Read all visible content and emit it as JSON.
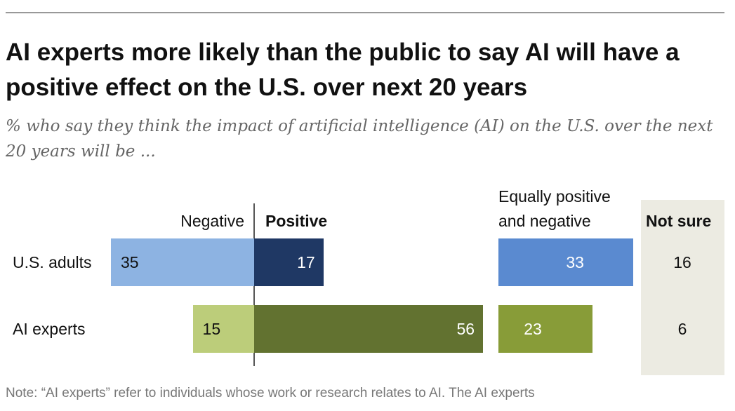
{
  "chart_data": {
    "type": "bar",
    "title": "AI experts more likely than the public to say AI will have a positive effect on the U.S. over next 20 years",
    "subtitle": "% who say they think the impact of artificial intelligence (AI) on the U.S. over the next 20 years will be ...",
    "headers": {
      "negative": "Negative",
      "positive": "Positive",
      "equally_1": "Equally positive",
      "equally_2": "and negative",
      "not_sure": "Not sure"
    },
    "categories": [
      "U.S. adults",
      "AI experts"
    ],
    "series": [
      {
        "name": "Negative",
        "values": [
          35,
          15
        ],
        "colors": [
          "#8db3e2",
          "#bccd7a"
        ]
      },
      {
        "name": "Positive",
        "values": [
          17,
          56
        ],
        "colors": [
          "#1f3864",
          "#627230"
        ]
      },
      {
        "name": "Equally positive and negative",
        "values": [
          33,
          23
        ],
        "colors": [
          "#5a8ad0",
          "#889c38"
        ]
      },
      {
        "name": "Not sure",
        "values": [
          16,
          6
        ]
      }
    ],
    "note": "Note: “AI experts” refer to individuals whose work or research relates to AI. The AI experts"
  }
}
